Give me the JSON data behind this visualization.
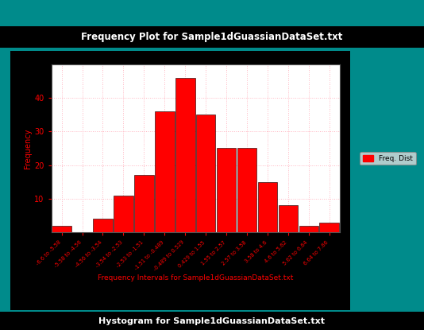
{
  "title": "Frequency Plot for Sample1dGuassianDataSet.txt",
  "bottom_title": "Hystogram for Sample1dGuassianDataSet.txt",
  "xlabel": "Frequency Intervals for Sample1dGuassianDataSet.txt",
  "ylabel": "Frequency",
  "legend_label": "Freq. Dist",
  "bar_labels": [
    "-6.6 to -5.58",
    "-5.58 to -4.56",
    "-4.56 to -3.54",
    "-3.54 to -2.53",
    "-2.53 to -1.51",
    "-1.51 to -0.489",
    "-0.489 to 0.529",
    "0.429 to 1.55",
    "1.55 to 2.57",
    "2.57 to 3.58",
    "3.58 to 4.6",
    "4.6 to 5.62",
    "5.62 to 6.64",
    "6.64 to 7.66"
  ],
  "bar_values": [
    2,
    0,
    4,
    11,
    17,
    36,
    46,
    35,
    25,
    25,
    15,
    8,
    2,
    3
  ],
  "bar_color": "#FF0000",
  "bar_edge_color": "#000000",
  "ylim": [
    0,
    50
  ],
  "yticks": [
    10,
    20,
    30,
    40
  ],
  "background_outer": "#000000",
  "background_inner": "#FFFFFF",
  "background_app": "#008B8B",
  "grid_color": "#FFB6C1",
  "title_color": "#FFFFFF",
  "title_bg": "#000000",
  "axis_label_color": "#FF0000",
  "tick_label_color": "#FF0000",
  "ytick_label_color": "#FF0000",
  "bottom_title_color": "#FFFFFF",
  "bottom_title_bg": "#000000",
  "figwidth": 5.34,
  "figheight": 4.15,
  "dpi": 100
}
